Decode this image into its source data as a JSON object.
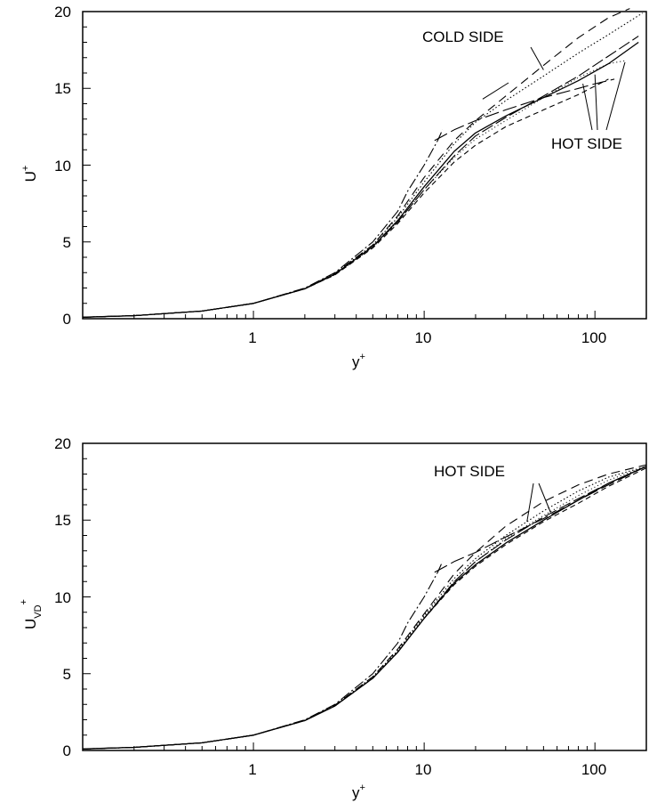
{
  "panels": [
    {
      "chart_data": {
        "type": "line",
        "xscale": "log",
        "xlim": [
          0.1,
          200
        ],
        "ylim": [
          0,
          20
        ],
        "xticks": [
          1,
          10,
          100
        ],
        "xtick_labels": [
          "1",
          "10",
          "100"
        ],
        "yticks": [
          0,
          5,
          10,
          15,
          20
        ],
        "ytick_labels": [
          "0",
          "5",
          "10",
          "15",
          "20"
        ],
        "xlabel": "y",
        "xlabel_sup": "+",
        "ylabel": "U",
        "ylabel_sup": "+",
        "ylabel_sub": "",
        "grid": false,
        "series": [
          {
            "style": "solid",
            "x": [
              0.1,
              0.2,
              0.5,
              1,
              2,
              3,
              5,
              7,
              10,
              15,
              20,
              30,
              50,
              80,
              120,
              180
            ],
            "y": [
              0.1,
              0.2,
              0.5,
              1,
              1.95,
              2.9,
              4.7,
              6.4,
              8.6,
              10.9,
              12.1,
              13.2,
              14.4,
              15.5,
              16.6,
              18.0
            ]
          },
          {
            "style": "long-dash",
            "x": [
              0.1,
              0.2,
              0.5,
              1,
              2,
              3,
              5,
              7,
              10,
              15,
              20,
              30,
              50,
              80,
              120,
              180
            ],
            "y": [
              0.1,
              0.2,
              0.5,
              1,
              1.95,
              2.9,
              4.7,
              6.3,
              8.4,
              10.6,
              11.9,
              13.1,
              14.5,
              15.8,
              17.1,
              18.4
            ]
          },
          {
            "style": "short-dash",
            "x": [
              0.1,
              0.2,
              0.5,
              1,
              2,
              3,
              5,
              7,
              10,
              15,
              20,
              30,
              50,
              80,
              120
            ],
            "y": [
              0.1,
              0.2,
              0.5,
              1,
              1.95,
              2.85,
              4.6,
              6.2,
              8.2,
              10.2,
              11.3,
              12.5,
              13.6,
              14.6,
              15.6
            ]
          },
          {
            "style": "dotted-cold",
            "x": [
              0.1,
              0.2,
              0.5,
              1,
              2,
              3,
              5,
              7,
              10,
              15,
              20,
              30,
              50,
              80,
              120,
              190
            ],
            "y": [
              0.1,
              0.2,
              0.5,
              1,
              1.97,
              2.95,
              4.8,
              6.6,
              8.9,
              11.4,
              12.8,
              14.2,
              15.8,
              17.3,
              18.5,
              19.9
            ]
          },
          {
            "style": "dotted-hot",
            "x": [
              0.1,
              0.2,
              0.5,
              1,
              2,
              3,
              5,
              7,
              10,
              15,
              20,
              30,
              50,
              80,
              120,
              150
            ],
            "y": [
              0.1,
              0.2,
              0.5,
              1,
              1.95,
              2.85,
              4.65,
              6.3,
              8.4,
              10.5,
              11.7,
              12.9,
              14.4,
              15.7,
              16.6,
              16.8
            ]
          },
          {
            "style": "dash-long-cold",
            "x": [
              0.1,
              0.2,
              0.5,
              1,
              2,
              3,
              5,
              7,
              10,
              15,
              20,
              30,
              50,
              80,
              120,
              160
            ],
            "y": [
              0.1,
              0.2,
              0.5,
              1,
              1.97,
              2.95,
              4.8,
              6.7,
              9.2,
              11.6,
              12.9,
              14.5,
              16.5,
              18.3,
              19.6,
              20.2
            ]
          },
          {
            "style": "dash-dot",
            "x": [
              0.1,
              0.2,
              0.5,
              1,
              2,
              3,
              5,
              7,
              8,
              10,
              12,
              12.8
            ],
            "y": [
              0.1,
              0.2,
              0.5,
              1,
              2.0,
              3.0,
              5.0,
              7.0,
              8.3,
              10.0,
              11.6,
              12.3
            ]
          },
          {
            "style": "log-law-hot",
            "x": [
              11.5,
              15,
              20,
              30,
              50,
              80,
              100,
              130
            ],
            "y": [
              11.6,
              12.3,
              12.9,
              13.6,
              14.4,
              15.0,
              15.3,
              15.6
            ]
          }
        ],
        "annotations": [
          {
            "text": "COLD SIDE",
            "leader_targets": [
              [
                22,
                14.3
              ],
              [
                50,
                16.2
              ]
            ]
          },
          {
            "text": "HOT SIDE",
            "leader_targets": [
              [
                85,
                15.3
              ],
              [
                100,
                15.9
              ],
              [
                150,
                16.7
              ]
            ]
          }
        ]
      }
    },
    {
      "chart_data": {
        "type": "line",
        "xscale": "log",
        "xlim": [
          0.1,
          200
        ],
        "ylim": [
          0,
          20
        ],
        "xticks": [
          1,
          10,
          100
        ],
        "xtick_labels": [
          "1",
          "10",
          "100"
        ],
        "yticks": [
          0,
          5,
          10,
          15,
          20
        ],
        "ytick_labels": [
          "0",
          "5",
          "10",
          "15",
          "20"
        ],
        "xlabel": "y",
        "xlabel_sup": "+",
        "ylabel": "U",
        "ylabel_sup": "+",
        "ylabel_sub": "VD",
        "grid": false,
        "series": [
          {
            "style": "solid",
            "x": [
              0.1,
              0.2,
              0.5,
              1,
              2,
              3,
              5,
              7,
              10,
              15,
              20,
              30,
              50,
              80,
              120,
              200
            ],
            "y": [
              0.1,
              0.2,
              0.5,
              1,
              1.95,
              2.9,
              4.7,
              6.4,
              8.6,
              10.9,
              12.1,
              13.5,
              15.0,
              16.3,
              17.4,
              18.5
            ]
          },
          {
            "style": "long-dash",
            "x": [
              0.1,
              0.2,
              0.5,
              1,
              2,
              3,
              5,
              7,
              10,
              15,
              20,
              30,
              50,
              80,
              120,
              200
            ],
            "y": [
              0.1,
              0.2,
              0.5,
              1,
              1.95,
              2.9,
              4.7,
              6.4,
              8.6,
              11.0,
              12.3,
              13.7,
              15.2,
              16.4,
              17.4,
              18.5
            ]
          },
          {
            "style": "short-dash",
            "x": [
              0.1,
              0.2,
              0.5,
              1,
              2,
              3,
              5,
              7,
              10,
              15,
              20,
              30,
              50,
              80,
              120,
              200
            ],
            "y": [
              0.1,
              0.2,
              0.5,
              1,
              1.95,
              2.9,
              4.7,
              6.4,
              8.6,
              10.8,
              12.0,
              13.4,
              14.9,
              16.1,
              17.2,
              18.4
            ]
          },
          {
            "style": "dotted-cold",
            "x": [
              0.1,
              0.2,
              0.5,
              1,
              2,
              3,
              5,
              7,
              10,
              15,
              20,
              30,
              50,
              80,
              120,
              200
            ],
            "y": [
              0.1,
              0.2,
              0.5,
              1,
              1.97,
              2.95,
              4.8,
              6.5,
              8.8,
              11.2,
              12.5,
              14.0,
              15.6,
              16.9,
              17.8,
              18.5
            ]
          },
          {
            "style": "dotted-hot",
            "x": [
              0.1,
              0.2,
              0.5,
              1,
              2,
              3,
              5,
              7,
              10,
              15,
              20,
              30,
              50,
              80,
              120,
              200
            ],
            "y": [
              0.1,
              0.2,
              0.5,
              1,
              1.95,
              2.9,
              4.75,
              6.45,
              8.7,
              11.0,
              12.3,
              13.8,
              15.3,
              16.6,
              17.6,
              18.5
            ]
          },
          {
            "style": "dash-long-cold",
            "x": [
              0.1,
              0.2,
              0.5,
              1,
              2,
              3,
              5,
              7,
              10,
              15,
              20,
              30,
              50,
              80,
              120,
              200
            ],
            "y": [
              0.1,
              0.2,
              0.5,
              1,
              1.97,
              2.95,
              4.8,
              6.6,
              8.9,
              11.5,
              12.9,
              14.6,
              16.2,
              17.3,
              18.0,
              18.6
            ]
          },
          {
            "style": "dash-dot",
            "x": [
              0.1,
              0.2,
              0.5,
              1,
              2,
              3,
              5,
              7,
              8,
              10,
              12,
              12.8
            ],
            "y": [
              0.1,
              0.2,
              0.5,
              1,
              2.0,
              3.0,
              5.0,
              7.0,
              8.3,
              10.0,
              11.6,
              12.3
            ]
          },
          {
            "style": "log-law-hot",
            "x": [
              11.5,
              15,
              20,
              30,
              50,
              80,
              120,
              200
            ],
            "y": [
              11.6,
              12.3,
              12.9,
              13.9,
              15.1,
              16.3,
              17.3,
              18.5
            ]
          }
        ],
        "annotations": [
          {
            "text": "HOT SIDE",
            "leader_targets": [
              [
                40,
                14.9
              ],
              [
                55,
                15.5
              ]
            ]
          }
        ]
      }
    }
  ]
}
